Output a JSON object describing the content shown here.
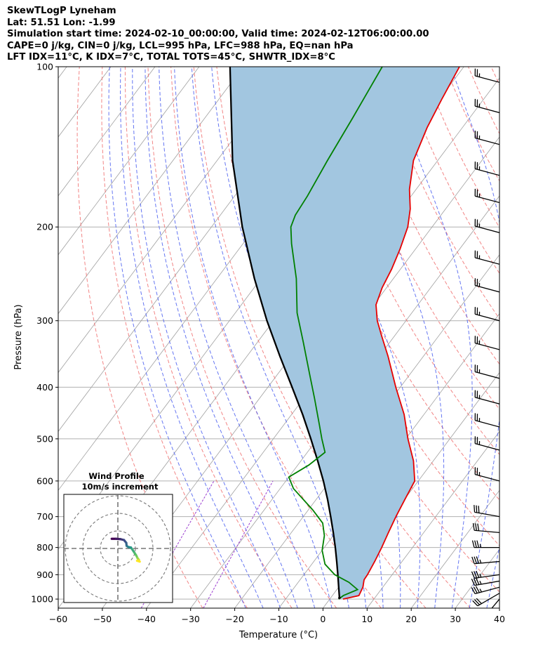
{
  "header": {
    "line1": "SkewTLogP Lyneham",
    "line2": "Lat: 51.51   Lon: -1.99",
    "line3": "Simulation start time: 2024-02-10_00:00:00, Valid time: 2024-02-12T06:00:00.00",
    "line4": "CAPE=0 j/kg, CIN=0 j/kg, LCL=995 hPa, LFC=988 hPa, EQ=nan hPa",
    "line5": "LFT IDX=11°C, K IDX=7°C, TOTAL TOTS=45°C, SHWTR_IDX=8°C"
  },
  "chart_data": {
    "type": "skewt",
    "xlabel": "Temperature (°C)",
    "ylabel": "Pressure (hPa)",
    "xlim": [
      -60,
      40
    ],
    "ylim": [
      1040,
      100
    ],
    "x_ticks": [
      "−60",
      "−50",
      "−40",
      "−30",
      "−20",
      "−10",
      "0",
      "10",
      "20",
      "30",
      "40"
    ],
    "y_ticks": [
      "100",
      "200",
      "300",
      "400",
      "500",
      "600",
      "700",
      "800",
      "900",
      "1000"
    ],
    "colors": {
      "temperature": "#e60000",
      "dewpoint": "#008000",
      "parcel": "#000000",
      "cape_fill": "#a2c6e0",
      "dry_adiabat": "#f07070",
      "moist_adiabat": "#4a5ef0",
      "mixing_ratio": "#9b3dd0",
      "isotherm": "#a0a0a0",
      "isobar": "#b0b0b0"
    },
    "temperature": [
      {
        "p": 1000,
        "t": 3.0
      },
      {
        "p": 985,
        "t": 6.0
      },
      {
        "p": 950,
        "t": 5.5
      },
      {
        "p": 920,
        "t": 4.5
      },
      {
        "p": 900,
        "t": 4.4
      },
      {
        "p": 850,
        "t": 3.8
      },
      {
        "p": 800,
        "t": 3.0
      },
      {
        "p": 750,
        "t": 2.0
      },
      {
        "p": 700,
        "t": 1.0
      },
      {
        "p": 650,
        "t": 0.1
      },
      {
        "p": 600,
        "t": -0.8
      },
      {
        "p": 550,
        "t": -4.5
      },
      {
        "p": 500,
        "t": -9.5
      },
      {
        "p": 450,
        "t": -14.5
      },
      {
        "p": 400,
        "t": -21.0
      },
      {
        "p": 350,
        "t": -28.0
      },
      {
        "p": 320,
        "t": -33.0
      },
      {
        "p": 300,
        "t": -36.5
      },
      {
        "p": 280,
        "t": -39.5
      },
      {
        "p": 260,
        "t": -41.0
      },
      {
        "p": 240,
        "t": -42.0
      },
      {
        "p": 220,
        "t": -43.5
      },
      {
        "p": 200,
        "t": -45.5
      },
      {
        "p": 185,
        "t": -48.0
      },
      {
        "p": 170,
        "t": -51.5
      },
      {
        "p": 150,
        "t": -55.5
      },
      {
        "p": 130,
        "t": -58.0
      },
      {
        "p": 115,
        "t": -59.5
      },
      {
        "p": 100,
        "t": -61.0
      }
    ],
    "dewpoint": [
      {
        "p": 1000,
        "t": 2.0
      },
      {
        "p": 985,
        "t": 2.5
      },
      {
        "p": 960,
        "t": 4.7
      },
      {
        "p": 930,
        "t": 1.5
      },
      {
        "p": 900,
        "t": -3.0
      },
      {
        "p": 860,
        "t": -7.0
      },
      {
        "p": 810,
        "t": -10.0
      },
      {
        "p": 760,
        "t": -12.0
      },
      {
        "p": 720,
        "t": -14.5
      },
      {
        "p": 680,
        "t": -19.0
      },
      {
        "p": 620,
        "t": -27.0
      },
      {
        "p": 590,
        "t": -30.0
      },
      {
        "p": 560,
        "t": -27.5
      },
      {
        "p": 530,
        "t": -26.0
      },
      {
        "p": 500,
        "t": -29.0
      },
      {
        "p": 470,
        "t": -32.0
      },
      {
        "p": 420,
        "t": -37.5
      },
      {
        "p": 380,
        "t": -42.5
      },
      {
        "p": 330,
        "t": -49.5
      },
      {
        "p": 290,
        "t": -56.0
      },
      {
        "p": 250,
        "t": -62.0
      },
      {
        "p": 215,
        "t": -69.0
      },
      {
        "p": 200,
        "t": -72.0
      },
      {
        "p": 190,
        "t": -73.0
      },
      {
        "p": 175,
        "t": -73.5
      },
      {
        "p": 150,
        "t": -75.0
      },
      {
        "p": 125,
        "t": -76.5
      },
      {
        "p": 100,
        "t": -78.5
      }
    ],
    "parcel": [
      {
        "p": 995,
        "t": 2.0
      },
      {
        "p": 950,
        "t": 0.0
      },
      {
        "p": 900,
        "t": -2.3
      },
      {
        "p": 850,
        "t": -4.8
      },
      {
        "p": 800,
        "t": -7.5
      },
      {
        "p": 750,
        "t": -10.5
      },
      {
        "p": 700,
        "t": -13.8
      },
      {
        "p": 650,
        "t": -17.4
      },
      {
        "p": 600,
        "t": -21.5
      },
      {
        "p": 550,
        "t": -26.2
      },
      {
        "p": 500,
        "t": -31.5
      },
      {
        "p": 450,
        "t": -37.5
      },
      {
        "p": 400,
        "t": -44.5
      },
      {
        "p": 350,
        "t": -52.5
      },
      {
        "p": 300,
        "t": -61.5
      },
      {
        "p": 250,
        "t": -71.5
      },
      {
        "p": 200,
        "t": -83.0
      },
      {
        "p": 150,
        "t": -96.5
      },
      {
        "p": 100,
        "t": -113.0
      }
    ],
    "wind_barbs": [
      {
        "p": 1000,
        "speed_kt": 25,
        "dir_deg": 220
      },
      {
        "p": 975,
        "speed_kt": 30,
        "dir_deg": 240
      },
      {
        "p": 950,
        "speed_kt": 35,
        "dir_deg": 255
      },
      {
        "p": 925,
        "speed_kt": 35,
        "dir_deg": 260
      },
      {
        "p": 900,
        "speed_kt": 35,
        "dir_deg": 262
      },
      {
        "p": 850,
        "speed_kt": 35,
        "dir_deg": 265
      },
      {
        "p": 800,
        "speed_kt": 35,
        "dir_deg": 270
      },
      {
        "p": 750,
        "speed_kt": 30,
        "dir_deg": 275
      },
      {
        "p": 700,
        "speed_kt": 30,
        "dir_deg": 280
      },
      {
        "p": 600,
        "speed_kt": 25,
        "dir_deg": 285
      },
      {
        "p": 525,
        "speed_kt": 25,
        "dir_deg": 285
      },
      {
        "p": 475,
        "speed_kt": 25,
        "dir_deg": 285
      },
      {
        "p": 430,
        "speed_kt": 25,
        "dir_deg": 285
      },
      {
        "p": 385,
        "speed_kt": 25,
        "dir_deg": 285
      },
      {
        "p": 340,
        "speed_kt": 25,
        "dir_deg": 285
      },
      {
        "p": 300,
        "speed_kt": 25,
        "dir_deg": 285
      },
      {
        "p": 265,
        "speed_kt": 25,
        "dir_deg": 285
      },
      {
        "p": 235,
        "speed_kt": 25,
        "dir_deg": 285
      },
      {
        "p": 205,
        "speed_kt": 25,
        "dir_deg": 285
      },
      {
        "p": 180,
        "speed_kt": 25,
        "dir_deg": 285
      },
      {
        "p": 160,
        "speed_kt": 25,
        "dir_deg": 285
      },
      {
        "p": 140,
        "speed_kt": 25,
        "dir_deg": 285
      },
      {
        "p": 122,
        "speed_kt": 25,
        "dir_deg": 285
      },
      {
        "p": 107,
        "speed_kt": 25,
        "dir_deg": 285
      }
    ],
    "hodograph": {
      "title": "Wind Profile",
      "subtitle": "10m/s increment",
      "ring_step_ms": 10,
      "rings": 3,
      "max_ms": 30,
      "points": [
        {
          "u": -3.5,
          "v": 5.5
        },
        {
          "u": -1.0,
          "v": 5.5
        },
        {
          "u": 1.5,
          "v": 5.3
        },
        {
          "u": 3.5,
          "v": 4.8
        },
        {
          "u": 4.8,
          "v": 3.2
        },
        {
          "u": 5.0,
          "v": 1.5
        },
        {
          "u": 6.0,
          "v": 0.8
        },
        {
          "u": 7.5,
          "v": 0.5
        },
        {
          "u": 8.2,
          "v": -0.5
        },
        {
          "u": 9.5,
          "v": -2.5
        },
        {
          "u": 10.5,
          "v": -4.0
        },
        {
          "u": 11.2,
          "v": -5.5
        },
        {
          "u": 12.0,
          "v": -6.5
        },
        {
          "u": 11.0,
          "v": -7.0
        },
        {
          "u": 12.5,
          "v": -7.5
        }
      ]
    }
  }
}
